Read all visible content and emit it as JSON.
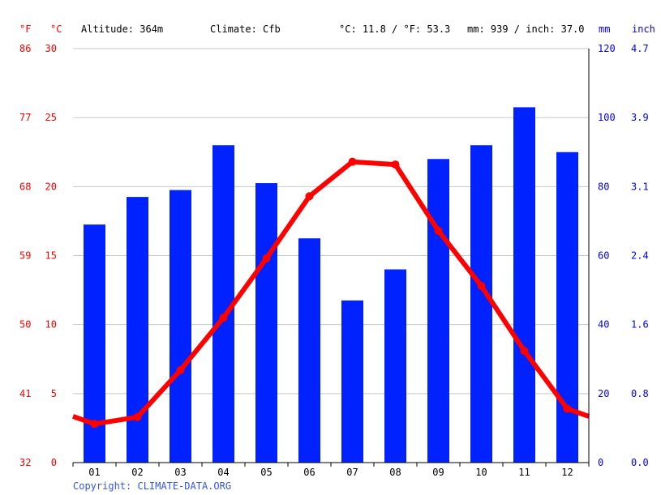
{
  "header": {
    "unit_f": "°F",
    "unit_c": "°C",
    "altitude": "Altitude: 364m",
    "climate": "Climate: Cfb",
    "temp_avg": "°C: 11.8 / °F: 53.3",
    "precip_total": "mm: 939 / inch: 37.0",
    "unit_mm": "mm",
    "unit_inch": "inch"
  },
  "footer": {
    "copyright": "Copyright: CLIMATE-DATA.ORG"
  },
  "colors": {
    "temperature": "#ff0000",
    "precipitation": "#0022ff",
    "grid": "#c8c8c8"
  },
  "chart_data": {
    "type": "bar+line",
    "categories": [
      "01",
      "02",
      "03",
      "04",
      "05",
      "06",
      "07",
      "08",
      "09",
      "10",
      "11",
      "12"
    ],
    "series": [
      {
        "kind": "bar",
        "axis": "right",
        "values": [
          69,
          77,
          79,
          92,
          81,
          65,
          47,
          56,
          88,
          92,
          103,
          90
        ]
      },
      {
        "kind": "line",
        "axis": "left",
        "values": [
          2.8,
          3.3,
          6.7,
          10.5,
          14.8,
          19.3,
          21.8,
          21.6,
          16.8,
          12.8,
          8.1,
          3.9
        ]
      }
    ],
    "y_left": {
      "range": [
        0,
        30
      ],
      "ticks": [
        "0",
        "5",
        "10",
        "15",
        "20",
        "25",
        "30"
      ]
    },
    "y_left_f": {
      "ticks": [
        "32",
        "41",
        "50",
        "59",
        "68",
        "77",
        "86"
      ]
    },
    "y_right": {
      "range": [
        0,
        120
      ],
      "ticks": [
        "0",
        "20",
        "40",
        "60",
        "80",
        "100",
        "120"
      ]
    },
    "y_right_inch": {
      "ticks": [
        "0.0",
        "0.8",
        "1.6",
        "2.4",
        "3.1",
        "3.9",
        "4.7"
      ]
    },
    "grid": true
  }
}
